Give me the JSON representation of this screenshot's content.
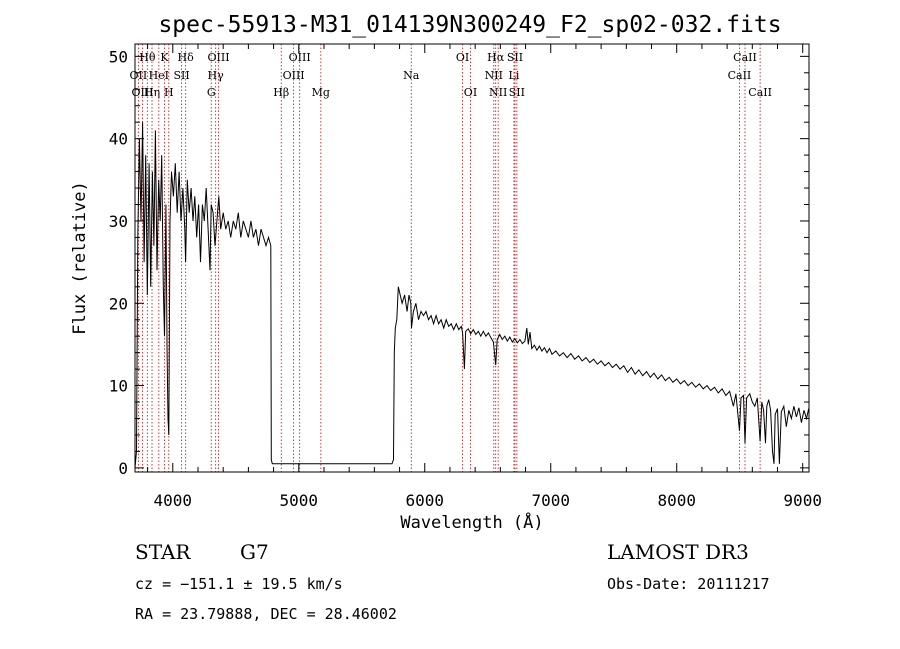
{
  "chart_data": {
    "type": "line",
    "title": "spec-55913-M31_014139N300249_F2_sp02-032.fits",
    "xlabel": "Wavelength (Å)",
    "ylabel": "Flux (relative)",
    "xlim": [
      3700,
      9050
    ],
    "ylim": [
      -0.5,
      51.5
    ],
    "xticks": [
      4000,
      5000,
      6000,
      7000,
      8000,
      9000
    ],
    "yticks": [
      0,
      10,
      20,
      30,
      40,
      50
    ],
    "line_color": "#000000",
    "marker_color": "#cc2222",
    "spectral_lines": [
      {
        "name": "Hθ",
        "wavelength": 3798,
        "row": 0
      },
      {
        "name": "OII",
        "wavelength": 3727,
        "row": 1
      },
      {
        "name": "OIII",
        "wavelength": 3760,
        "row": 2
      },
      {
        "name": "Hη",
        "wavelength": 3835,
        "row": 2
      },
      {
        "name": "K",
        "wavelength": 3934,
        "row": 0
      },
      {
        "name": "HeI",
        "wavelength": 3889,
        "row": 1
      },
      {
        "name": "SII",
        "wavelength": 4070,
        "row": 1
      },
      {
        "name": "H",
        "wavelength": 3968,
        "row": 2
      },
      {
        "name": "Hδ",
        "wavelength": 4102,
        "row": 0
      },
      {
        "name": "OIII",
        "wavelength": 4363,
        "row": 0
      },
      {
        "name": "Hγ",
        "wavelength": 4340,
        "row": 1
      },
      {
        "name": "G",
        "wavelength": 4305,
        "row": 2
      },
      {
        "name": "Hβ",
        "wavelength": 4861,
        "row": 2
      },
      {
        "name": "OIII",
        "wavelength": 5007,
        "row": 0
      },
      {
        "name": "OIII",
        "wavelength": 4959,
        "row": 1
      },
      {
        "name": "Mg",
        "wavelength": 5175,
        "row": 2
      },
      {
        "name": "Na",
        "wavelength": 5893,
        "row": 1
      },
      {
        "name": "OI",
        "wavelength": 6300,
        "row": 0
      },
      {
        "name": "OI",
        "wavelength": 6363,
        "row": 2
      },
      {
        "name": "Hα",
        "wavelength": 6563,
        "row": 0
      },
      {
        "name": "NII",
        "wavelength": 6548,
        "row": 1
      },
      {
        "name": "NII",
        "wavelength": 6583,
        "row": 2
      },
      {
        "name": "SII",
        "wavelength": 6716,
        "row": 0
      },
      {
        "name": "Li",
        "wavelength": 6708,
        "row": 1
      },
      {
        "name": "SII",
        "wavelength": 6731,
        "row": 2
      },
      {
        "name": "CaII",
        "wavelength": 8542,
        "row": 0
      },
      {
        "name": "CaII",
        "wavelength": 8498,
        "row": 1
      },
      {
        "name": "CaII",
        "wavelength": 8662,
        "row": 2
      }
    ],
    "spectrum": {
      "description_points": [
        [
          3700,
          0
        ],
        [
          3712,
          2
        ],
        [
          3722,
          28
        ],
        [
          3735,
          40
        ],
        [
          3748,
          30
        ],
        [
          3760,
          42
        ],
        [
          3772,
          25
        ],
        [
          3785,
          38
        ],
        [
          3798,
          21
        ],
        [
          3812,
          37
        ],
        [
          3825,
          22
        ],
        [
          3838,
          36
        ],
        [
          3850,
          27
        ],
        [
          3862,
          41
        ],
        [
          3875,
          24
        ],
        [
          3888,
          35
        ],
        [
          3900,
          30
        ],
        [
          3912,
          38
        ],
        [
          3925,
          22
        ],
        [
          3934,
          16
        ],
        [
          3945,
          32
        ],
        [
          3955,
          14
        ],
        [
          3962,
          6
        ],
        [
          3968,
          4
        ],
        [
          3978,
          30
        ],
        [
          3990,
          36
        ],
        [
          4005,
          33
        ],
        [
          4020,
          37
        ],
        [
          4035,
          31
        ],
        [
          4050,
          36
        ],
        [
          4065,
          30
        ],
        [
          4080,
          34
        ],
        [
          4095,
          29
        ],
        [
          4102,
          25
        ],
        [
          4115,
          35
        ],
        [
          4130,
          31
        ],
        [
          4145,
          34
        ],
        [
          4160,
          30
        ],
        [
          4175,
          33
        ],
        [
          4190,
          28
        ],
        [
          4205,
          32
        ],
        [
          4220,
          25
        ],
        [
          4235,
          32
        ],
        [
          4250,
          30
        ],
        [
          4265,
          34
        ],
        [
          4280,
          29
        ],
        [
          4295,
          24
        ],
        [
          4305,
          32
        ],
        [
          4320,
          31
        ],
        [
          4335,
          27
        ],
        [
          4350,
          30
        ],
        [
          4365,
          33
        ],
        [
          4380,
          29
        ],
        [
          4400,
          31
        ],
        [
          4420,
          29
        ],
        [
          4440,
          30
        ],
        [
          4460,
          28
        ],
        [
          4480,
          30
        ],
        [
          4500,
          29
        ],
        [
          4520,
          31
        ],
        [
          4540,
          28
        ],
        [
          4560,
          30
        ],
        [
          4580,
          29
        ],
        [
          4600,
          28
        ],
        [
          4620,
          30
        ],
        [
          4640,
          28
        ],
        [
          4660,
          29
        ],
        [
          4680,
          27
        ],
        [
          4700,
          29
        ],
        [
          4720,
          28
        ],
        [
          4740,
          27
        ],
        [
          4760,
          28
        ],
        [
          4778,
          27
        ],
        [
          4782,
          1
        ],
        [
          4790,
          0.5
        ],
        [
          5740,
          0.5
        ],
        [
          5752,
          1
        ],
        [
          5758,
          14
        ],
        [
          5766,
          17
        ],
        [
          5778,
          18
        ],
        [
          5790,
          22
        ],
        [
          5805,
          21
        ],
        [
          5820,
          20
        ],
        [
          5840,
          21
        ],
        [
          5860,
          19
        ],
        [
          5875,
          21
        ],
        [
          5889,
          20
        ],
        [
          5895,
          17
        ],
        [
          5910,
          19
        ],
        [
          5930,
          20
        ],
        [
          5950,
          18
        ],
        [
          5970,
          19
        ],
        [
          5990,
          18.5
        ],
        [
          6010,
          19
        ],
        [
          6030,
          18
        ],
        [
          6050,
          18.5
        ],
        [
          6070,
          17.5
        ],
        [
          6090,
          18.5
        ],
        [
          6110,
          17.5
        ],
        [
          6130,
          18
        ],
        [
          6150,
          17
        ],
        [
          6170,
          18
        ],
        [
          6190,
          17.2
        ],
        [
          6210,
          17.5
        ],
        [
          6230,
          16.8
        ],
        [
          6250,
          17.5
        ],
        [
          6270,
          16.8
        ],
        [
          6290,
          17.2
        ],
        [
          6300,
          16.4
        ],
        [
          6315,
          12
        ],
        [
          6325,
          16.6
        ],
        [
          6345,
          16.9
        ],
        [
          6365,
          16.3
        ],
        [
          6385,
          16.8
        ],
        [
          6405,
          16.2
        ],
        [
          6425,
          16.6
        ],
        [
          6445,
          16
        ],
        [
          6465,
          16.6
        ],
        [
          6485,
          16
        ],
        [
          6505,
          16.4
        ],
        [
          6525,
          15.8
        ],
        [
          6545,
          15.3
        ],
        [
          6563,
          12.5
        ],
        [
          6575,
          15.6
        ],
        [
          6595,
          16.2
        ],
        [
          6615,
          15.6
        ],
        [
          6635,
          16
        ],
        [
          6655,
          15.4
        ],
        [
          6675,
          15.9
        ],
        [
          6695,
          15.3
        ],
        [
          6715,
          15.7
        ],
        [
          6735,
          15.2
        ],
        [
          6755,
          15.6
        ],
        [
          6775,
          15.1
        ],
        [
          6795,
          15.4
        ],
        [
          6810,
          17
        ],
        [
          6822,
          15
        ],
        [
          6835,
          16.5
        ],
        [
          6850,
          14.5
        ],
        [
          6870,
          14.9
        ],
        [
          6890,
          14.3
        ],
        [
          6910,
          14.8
        ],
        [
          6930,
          14.2
        ],
        [
          6950,
          14.6
        ],
        [
          6970,
          14
        ],
        [
          6990,
          14.5
        ],
        [
          7010,
          13.8
        ],
        [
          7040,
          14.2
        ],
        [
          7070,
          13.6
        ],
        [
          7100,
          14
        ],
        [
          7130,
          13.4
        ],
        [
          7160,
          13.9
        ],
        [
          7190,
          13.2
        ],
        [
          7220,
          13.6
        ],
        [
          7250,
          13
        ],
        [
          7280,
          13.4
        ],
        [
          7310,
          12.8
        ],
        [
          7340,
          13.2
        ],
        [
          7370,
          12.6
        ],
        [
          7400,
          13
        ],
        [
          7430,
          12.4
        ],
        [
          7460,
          12.8
        ],
        [
          7490,
          12.2
        ],
        [
          7520,
          12.6
        ],
        [
          7550,
          12
        ],
        [
          7580,
          12.4
        ],
        [
          7610,
          11.6
        ],
        [
          7640,
          12.2
        ],
        [
          7670,
          11.4
        ],
        [
          7700,
          11.9
        ],
        [
          7730,
          11.2
        ],
        [
          7760,
          11.7
        ],
        [
          7790,
          11
        ],
        [
          7820,
          11.5
        ],
        [
          7850,
          10.8
        ],
        [
          7880,
          11.3
        ],
        [
          7910,
          10.6
        ],
        [
          7940,
          11
        ],
        [
          7970,
          10.4
        ],
        [
          8000,
          10.8
        ],
        [
          8030,
          10.2
        ],
        [
          8060,
          10.6
        ],
        [
          8090,
          10
        ],
        [
          8120,
          10.4
        ],
        [
          8150,
          9.8
        ],
        [
          8180,
          10.2
        ],
        [
          8210,
          9.6
        ],
        [
          8240,
          10
        ],
        [
          8270,
          9.4
        ],
        [
          8300,
          9.8
        ],
        [
          8330,
          9.1
        ],
        [
          8360,
          9.6
        ],
        [
          8390,
          8.8
        ],
        [
          8420,
          9.3
        ],
        [
          8450,
          7.5
        ],
        [
          8470,
          9
        ],
        [
          8498,
          4.5
        ],
        [
          8510,
          8.5
        ],
        [
          8530,
          8.8
        ],
        [
          8542,
          3
        ],
        [
          8555,
          8.5
        ],
        [
          8580,
          9
        ],
        [
          8600,
          8
        ],
        [
          8620,
          7.5
        ],
        [
          8640,
          8.5
        ],
        [
          8662,
          3.2
        ],
        [
          8675,
          8
        ],
        [
          8690,
          7
        ],
        [
          8705,
          3
        ],
        [
          8715,
          7.5
        ],
        [
          8730,
          8.3
        ],
        [
          8745,
          7
        ],
        [
          8760,
          2
        ],
        [
          8772,
          0.5
        ],
        [
          8782,
          6.5
        ],
        [
          8800,
          7.2
        ],
        [
          8815,
          0.5
        ],
        [
          8830,
          6.8
        ],
        [
          8850,
          7.5
        ],
        [
          8870,
          5
        ],
        [
          8890,
          7
        ],
        [
          8910,
          6
        ],
        [
          8930,
          7.5
        ],
        [
          8950,
          6.2
        ],
        [
          8970,
          7.3
        ],
        [
          8990,
          5.5
        ],
        [
          9010,
          7
        ],
        [
          9030,
          6
        ],
        [
          9048,
          7.2
        ]
      ]
    }
  },
  "info": {
    "object_class": "STAR",
    "subclass": "G7",
    "survey": "LAMOST DR3",
    "velocity": "cz = −151.1 ± 19.5 km/s",
    "obs_date": "Obs-Date: 20111217",
    "coords": "RA =  23.79888, DEC =  28.46002"
  }
}
